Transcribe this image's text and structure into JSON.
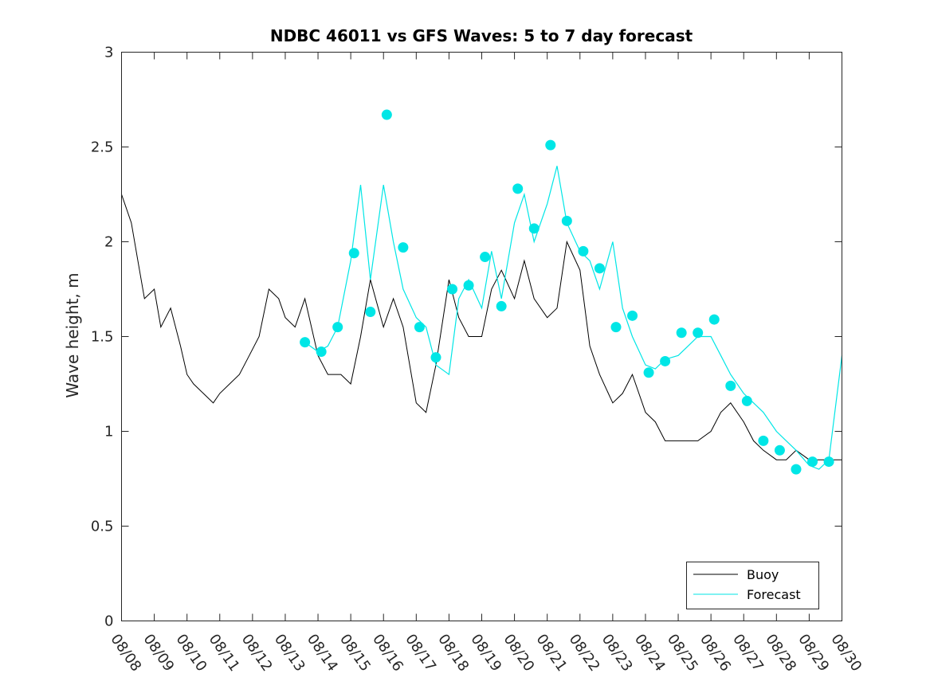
{
  "chart_data": {
    "type": "line",
    "title": "NDBC 46011 vs GFS Waves: 5 to 7 day forecast",
    "xlabel": "",
    "ylabel": "Wave height, m",
    "xlim": [
      0,
      22
    ],
    "ylim": [
      0,
      3
    ],
    "x_tick_labels": [
      "08/08",
      "08/09",
      "08/10",
      "08/11",
      "08/12",
      "08/13",
      "08/14",
      "08/15",
      "08/16",
      "08/17",
      "08/18",
      "08/19",
      "08/20",
      "08/21",
      "08/22",
      "08/23",
      "08/24",
      "08/25",
      "08/26",
      "08/27",
      "08/28",
      "08/29",
      "08/30"
    ],
    "y_ticks": [
      0,
      0.5,
      1,
      1.5,
      2,
      2.5,
      3
    ],
    "y_tick_labels": [
      "0",
      "0.5",
      "1",
      "1.5",
      "2",
      "2.5",
      "3"
    ],
    "legend": {
      "position": "bottom-right",
      "entries": [
        "Buoy",
        "Forecast"
      ]
    },
    "colors": {
      "buoy": "#000000",
      "forecast": "#00e6e6",
      "axis": "#262626"
    },
    "buoy_x": [
      0,
      0.3,
      0.5,
      0.7,
      1.0,
      1.2,
      1.5,
      1.8,
      2.0,
      2.2,
      2.5,
      2.8,
      3.0,
      3.3,
      3.6,
      3.9,
      4.2,
      4.5,
      4.8,
      5.0,
      5.3,
      5.6,
      6.0,
      6.3,
      6.7,
      7.0,
      7.3,
      7.6,
      8.0,
      8.3,
      8.6,
      9.0,
      9.3,
      9.6,
      10.0,
      10.3,
      10.6,
      11.0,
      11.3,
      11.6,
      12.0,
      12.3,
      12.6,
      13.0,
      13.3,
      13.6,
      14.0,
      14.3,
      14.6,
      15.0,
      15.3,
      15.6,
      16.0,
      16.3,
      16.6,
      17.0,
      17.3,
      17.6,
      18.0,
      18.3,
      18.6,
      19.0,
      19.3,
      19.6,
      20.0,
      20.3,
      20.6,
      21.0,
      21.3,
      21.6,
      22.0
    ],
    "buoy_y": [
      2.25,
      2.1,
      1.9,
      1.7,
      1.75,
      1.55,
      1.65,
      1.45,
      1.3,
      1.25,
      1.2,
      1.15,
      1.2,
      1.25,
      1.3,
      1.4,
      1.5,
      1.75,
      1.7,
      1.6,
      1.55,
      1.7,
      1.4,
      1.3,
      1.3,
      1.25,
      1.5,
      1.8,
      1.55,
      1.7,
      1.55,
      1.15,
      1.1,
      1.35,
      1.8,
      1.6,
      1.5,
      1.5,
      1.75,
      1.85,
      1.7,
      1.9,
      1.7,
      1.6,
      1.65,
      2.0,
      1.85,
      1.45,
      1.3,
      1.15,
      1.2,
      1.3,
      1.1,
      1.05,
      0.95,
      0.95,
      0.95,
      0.95,
      1.0,
      1.1,
      1.15,
      1.05,
      0.95,
      0.9,
      0.85,
      0.85,
      0.9,
      0.85,
      0.85,
      0.85,
      0.85
    ],
    "forecast_x": [
      5.6,
      6.0,
      6.3,
      6.6,
      7.0,
      7.3,
      7.6,
      8.0,
      8.3,
      8.6,
      9.0,
      9.3,
      9.6,
      10.0,
      10.3,
      10.6,
      11.0,
      11.3,
      11.6,
      12.0,
      12.3,
      12.6,
      13.0,
      13.3,
      13.6,
      14.0,
      14.3,
      14.6,
      15.0,
      15.3,
      15.6,
      16.0,
      16.3,
      16.6,
      17.0,
      17.3,
      17.6,
      18.0,
      18.3,
      18.6,
      19.0,
      19.3,
      19.6,
      20.0,
      20.3,
      20.6,
      21.0,
      21.3,
      21.6,
      22.0
    ],
    "forecast_y": [
      1.47,
      1.42,
      1.45,
      1.55,
      1.9,
      2.3,
      1.8,
      2.3,
      2.0,
      1.75,
      1.6,
      1.55,
      1.35,
      1.3,
      1.7,
      1.8,
      1.65,
      1.95,
      1.7,
      2.1,
      2.25,
      2.0,
      2.2,
      2.4,
      2.1,
      1.95,
      1.9,
      1.75,
      2.0,
      1.65,
      1.5,
      1.35,
      1.33,
      1.38,
      1.4,
      1.45,
      1.5,
      1.5,
      1.4,
      1.3,
      1.2,
      1.15,
      1.1,
      1.0,
      0.95,
      0.9,
      0.82,
      0.8,
      0.85,
      1.4
    ],
    "forecast_markers_x": [
      5.6,
      6.1,
      6.6,
      7.1,
      7.6,
      8.1,
      8.6,
      9.1,
      9.6,
      10.1,
      10.6,
      11.1,
      11.6,
      12.1,
      12.6,
      13.1,
      13.6,
      14.1,
      14.6,
      15.1,
      15.6,
      16.1,
      16.6,
      17.1,
      17.6,
      18.1,
      18.6,
      19.1,
      19.6,
      20.1,
      20.6,
      21.1,
      21.6
    ],
    "forecast_markers_y": [
      1.47,
      1.42,
      1.55,
      1.94,
      1.63,
      2.67,
      1.97,
      1.55,
      1.39,
      1.75,
      1.77,
      1.92,
      1.66,
      2.28,
      2.07,
      2.51,
      2.11,
      1.95,
      1.86,
      1.55,
      1.61,
      1.31,
      1.37,
      1.52,
      1.52,
      1.59,
      1.24,
      1.16,
      0.95,
      0.9,
      0.8,
      0.84,
      0.84
    ]
  }
}
